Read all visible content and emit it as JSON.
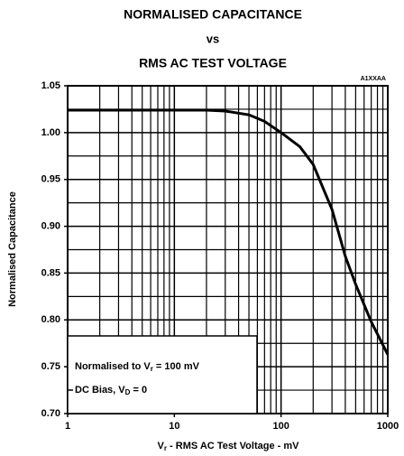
{
  "chart_data": {
    "type": "line",
    "title": [
      "NORMALISED CAPACITANCE",
      "vs",
      "RMS AC TEST VOLTAGE"
    ],
    "code": "A1XXAA",
    "ylabel": "Normalised Capacitance",
    "xlabel": [
      "V",
      "r",
      " - RMS AC Test Voltage - mV"
    ],
    "annotations": [
      [
        "Normalised to V",
        "r",
        " = 100 mV"
      ],
      [
        "DC Bias, V",
        "D",
        " = 0"
      ]
    ],
    "xscale": "log",
    "xlim": [
      1,
      1000
    ],
    "ylim": [
      0.7,
      1.05
    ],
    "xticks": [
      1,
      10,
      100,
      1000
    ],
    "xminor": [
      2,
      3,
      4,
      5,
      6,
      7,
      8,
      9,
      20,
      30,
      40,
      50,
      60,
      70,
      80,
      90,
      200,
      300,
      400,
      500,
      600,
      700,
      800,
      900
    ],
    "yticks": [
      1.05,
      {
        "value": 1.0,
        "label": "1.00"
      },
      0.95,
      {
        "value": 0.9,
        "label": "0.90"
      },
      0.85,
      {
        "value": 0.8,
        "label": "0.80"
      },
      0.75,
      {
        "value": 0.7,
        "label": "0.70"
      }
    ],
    "yminor": [
      1.025,
      0.975,
      0.925,
      0.875,
      0.825,
      0.775,
      0.725
    ],
    "grid": true,
    "series": [
      {
        "color": "#000000",
        "x": [
          1,
          10,
          20,
          30,
          50,
          70,
          100,
          150,
          200,
          300,
          400,
          500,
          700,
          1000
        ],
        "values": [
          1.024,
          1.024,
          1.024,
          1.023,
          1.019,
          1.012,
          1.0,
          0.985,
          0.966,
          0.918,
          0.868,
          0.838,
          0.798,
          0.763
        ]
      }
    ]
  }
}
